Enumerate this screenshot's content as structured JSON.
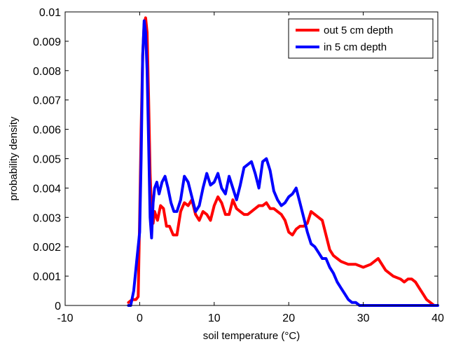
{
  "chart_data": {
    "type": "line",
    "title": "",
    "xlabel": "soil temperature (°C)",
    "ylabel": "probability density",
    "xlim": [
      -10,
      40
    ],
    "ylim": [
      0,
      0.01
    ],
    "xticks": [
      -10,
      0,
      10,
      20,
      30,
      40
    ],
    "xtick_labels": [
      "-10",
      "0",
      "10",
      "20",
      "30",
      "40"
    ],
    "yticks": [
      0,
      0.001,
      0.002,
      0.003,
      0.004,
      0.005,
      0.006,
      0.007,
      0.008,
      0.009,
      0.01
    ],
    "ytick_labels": [
      "0",
      "0.001",
      "0.002",
      "0.003",
      "0.004",
      "0.005",
      "0.006",
      "0.007",
      "0.008",
      "0.009",
      "0.01"
    ],
    "grid": false,
    "legend_position": "top-right",
    "series": [
      {
        "name": "out  5 cm depth",
        "color": "#ff0000",
        "x": [
          -1.5,
          -1.0,
          -0.5,
          -0.2,
          0.0,
          0.2,
          0.4,
          0.6,
          0.8,
          1.0,
          1.2,
          1.4,
          1.6,
          1.8,
          2.0,
          2.4,
          2.8,
          3.2,
          3.6,
          4.0,
          4.5,
          5.0,
          5.5,
          6.0,
          6.5,
          7.0,
          7.5,
          8.0,
          8.5,
          9.0,
          9.5,
          10.0,
          10.5,
          11.0,
          11.5,
          12.0,
          12.5,
          13.0,
          13.5,
          14.0,
          14.5,
          15.0,
          15.5,
          16.0,
          16.5,
          17.0,
          17.5,
          18.0,
          18.5,
          19.0,
          19.5,
          20.0,
          20.5,
          21.0,
          21.5,
          22.0,
          22.5,
          23.0,
          23.5,
          24.0,
          24.5,
          25.0,
          25.5,
          26.0,
          26.5,
          27.0,
          28.0,
          29.0,
          30.0,
          31.0,
          31.5,
          32.0,
          32.5,
          33.0,
          34.0,
          35.0,
          35.5,
          36.0,
          36.5,
          37.0,
          37.5,
          38.0,
          38.5,
          39.0,
          39.5
        ],
        "y": [
          0.0001,
          0.0002,
          0.0002,
          0.0003,
          0.003,
          0.006,
          0.0085,
          0.0096,
          0.0098,
          0.0093,
          0.007,
          0.0045,
          0.0032,
          0.0028,
          0.0032,
          0.0029,
          0.0034,
          0.0033,
          0.0027,
          0.0027,
          0.0024,
          0.0024,
          0.0032,
          0.0035,
          0.0034,
          0.0036,
          0.0031,
          0.0029,
          0.0032,
          0.0031,
          0.0029,
          0.0034,
          0.0037,
          0.0035,
          0.0031,
          0.0031,
          0.0036,
          0.0033,
          0.0032,
          0.0031,
          0.0031,
          0.0032,
          0.0033,
          0.0034,
          0.0034,
          0.0035,
          0.0033,
          0.0033,
          0.0032,
          0.0031,
          0.0029,
          0.0025,
          0.0024,
          0.0026,
          0.0027,
          0.0027,
          0.0028,
          0.0032,
          0.0031,
          0.003,
          0.0029,
          0.0024,
          0.0019,
          0.0017,
          0.0016,
          0.0015,
          0.0014,
          0.0014,
          0.0013,
          0.0014,
          0.0015,
          0.0016,
          0.0014,
          0.0012,
          0.001,
          0.0009,
          0.0008,
          0.0009,
          0.0009,
          0.0008,
          0.0006,
          0.0004,
          0.0002,
          0.0001,
          0.0
        ]
      },
      {
        "name": "in 5 cm depth",
        "color": "#0000ff",
        "x": [
          -1.5,
          -1.2,
          -0.8,
          -0.4,
          0.0,
          0.2,
          0.4,
          0.6,
          0.8,
          1.0,
          1.2,
          1.4,
          1.6,
          1.8,
          2.0,
          2.3,
          2.6,
          3.0,
          3.4,
          3.8,
          4.2,
          4.6,
          5.0,
          5.5,
          6.0,
          6.5,
          7.0,
          7.5,
          8.0,
          8.5,
          9.0,
          9.5,
          10.0,
          10.5,
          11.0,
          11.5,
          12.0,
          12.5,
          13.0,
          13.5,
          14.0,
          14.5,
          15.0,
          15.5,
          16.0,
          16.5,
          17.0,
          17.5,
          18.0,
          18.5,
          19.0,
          19.5,
          20.0,
          20.5,
          21.0,
          21.5,
          22.0,
          22.5,
          23.0,
          23.5,
          24.0,
          24.5,
          25.0,
          25.5,
          26.0,
          26.5,
          27.0,
          27.5,
          28.0,
          28.5,
          29.0,
          29.5,
          30.0,
          30.5,
          31.0,
          32.0,
          35.0,
          38.0,
          40.0
        ],
        "y": [
          0.0,
          0.0,
          0.0005,
          0.0015,
          0.0025,
          0.005,
          0.0085,
          0.0097,
          0.0093,
          0.008,
          0.0055,
          0.003,
          0.0023,
          0.0035,
          0.004,
          0.0042,
          0.0038,
          0.0042,
          0.0044,
          0.004,
          0.0035,
          0.0032,
          0.0032,
          0.0036,
          0.0044,
          0.0042,
          0.0037,
          0.0032,
          0.0034,
          0.004,
          0.0045,
          0.0041,
          0.0042,
          0.0045,
          0.004,
          0.0038,
          0.0044,
          0.004,
          0.0036,
          0.0041,
          0.0047,
          0.0048,
          0.0049,
          0.0045,
          0.004,
          0.0049,
          0.005,
          0.0046,
          0.0039,
          0.0036,
          0.0034,
          0.0035,
          0.0037,
          0.0038,
          0.004,
          0.0035,
          0.003,
          0.0025,
          0.0021,
          0.002,
          0.0018,
          0.0016,
          0.0016,
          0.0013,
          0.0011,
          0.0008,
          0.0006,
          0.0004,
          0.0002,
          0.0001,
          0.0001,
          0.0,
          0.0,
          0.0,
          0.0,
          0.0,
          0.0,
          0.0,
          0.0
        ]
      }
    ]
  }
}
